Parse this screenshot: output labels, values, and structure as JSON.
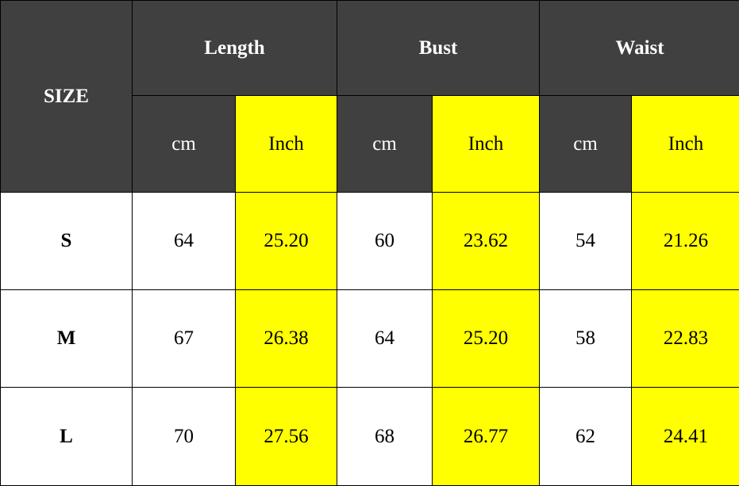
{
  "table": {
    "size_header": "SIZE",
    "groups": [
      "Length",
      "Bust",
      "Waist"
    ],
    "units": [
      "cm",
      "Inch",
      "cm",
      "Inch",
      "cm",
      "Inch"
    ],
    "rows": [
      {
        "size": "S",
        "values": [
          "64",
          "25.20",
          "60",
          "23.62",
          "54",
          "21.26"
        ]
      },
      {
        "size": "M",
        "values": [
          "67",
          "26.38",
          "64",
          "25.20",
          "58",
          "22.83"
        ]
      },
      {
        "size": "L",
        "values": [
          "70",
          "27.56",
          "68",
          "26.77",
          "62",
          "24.41"
        ]
      }
    ],
    "colors": {
      "header": "#404040",
      "inch_highlight": "#ffff00"
    }
  }
}
